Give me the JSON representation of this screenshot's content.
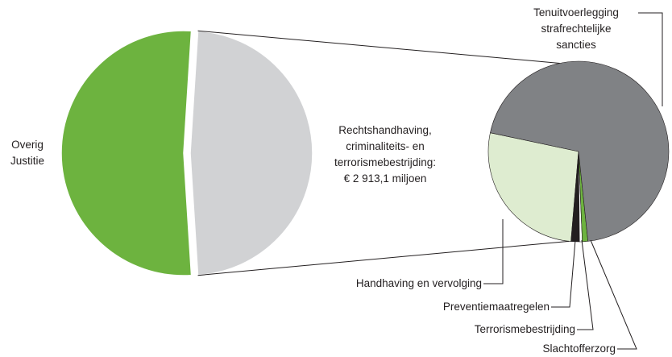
{
  "chart_data": [
    {
      "type": "pie",
      "categories": [
        "Overig\nJustitie",
        "Rechtshandhaving,\ncriminaliteits- en\nterrorismebestrijding:\n€ 2 913,1 miljoen"
      ],
      "values": [
        52,
        48
      ],
      "colors": [
        "#6db33f",
        "#d1d2d4"
      ]
    },
    {
      "type": "pie",
      "categories": [
        "Tenuitvoerlegging\nstrafrechtelijke\nsancties",
        "Slachtofferzorg",
        "Terrorismebestrijding",
        "Preventiemaatregelen",
        "Handhaving en vervolging"
      ],
      "values": [
        70,
        1,
        0.5,
        1.5,
        27
      ],
      "colors": [
        "#808285",
        "#6db33f",
        "#ffffff",
        "#231f20",
        "#deecd0"
      ]
    }
  ]
}
